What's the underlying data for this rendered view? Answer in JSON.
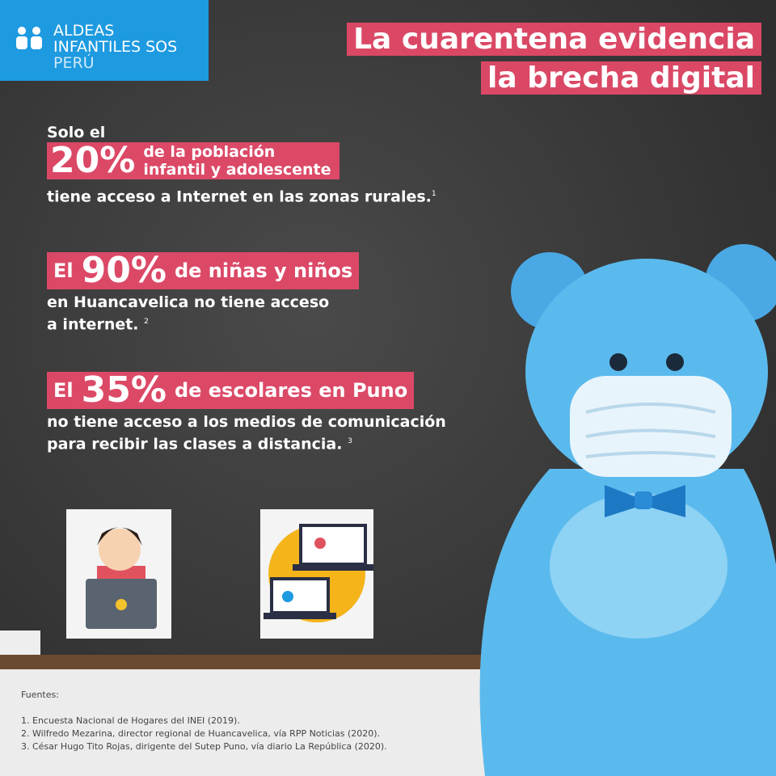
{
  "logo": {
    "lines": [
      "ALDEAS",
      "INFANTILES SOS",
      "PERÚ"
    ]
  },
  "title": {
    "lines": [
      "La cuarentena evidencia",
      "la brecha digital"
    ]
  },
  "stats": [
    {
      "lead": "Solo el",
      "big": "20%",
      "after": [
        "de la población",
        "infantil y adolescente"
      ],
      "rest": [
        "tiene acceso a Internet en las zonas rurales."
      ],
      "note": "1"
    },
    {
      "lead": "El",
      "big": "90%",
      "after": [
        "de niñas y niños"
      ],
      "rest": [
        "en Huancavelica no tiene acceso",
        "a internet."
      ],
      "note": "2"
    },
    {
      "lead": "El",
      "big": "35%",
      "after": [
        "de escolares en Puno"
      ],
      "rest": [
        "no tiene acceso a los medios de comunicación",
        "para recibir las clases a distancia."
      ],
      "note": "3"
    }
  ],
  "sources": {
    "heading": "Fuentes:",
    "items": [
      "1. Encuesta Nacional de Hogares del INEI (2019).",
      "2. Wilfredo Mezarina, director regional de Huancavelica, vía RPP Noticias (2020).",
      "3. César Hugo Tito Rojas, dirigente del Sutep Puno, vía diario La República (2020)."
    ]
  }
}
